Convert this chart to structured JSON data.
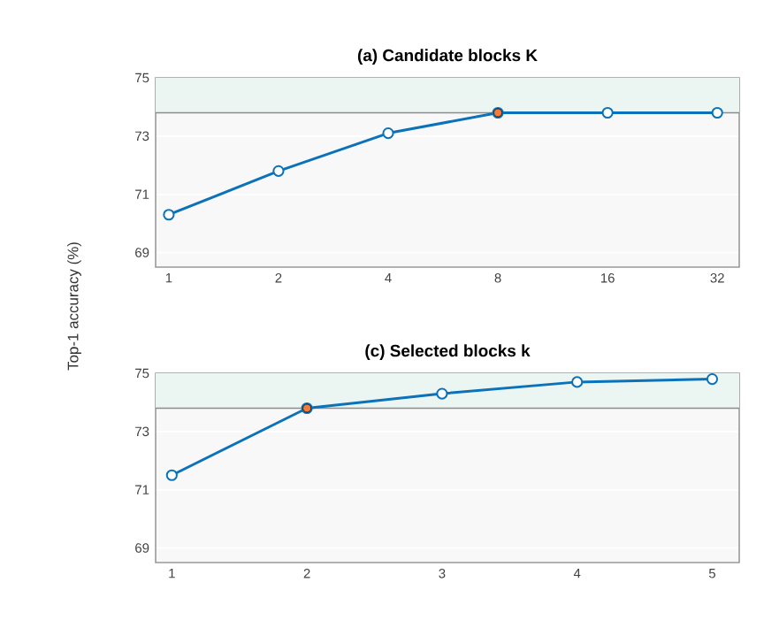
{
  "chart_data": [
    {
      "type": "line",
      "title": "(a) Candidate blocks K",
      "ylabel": "Top-1 accuracy (%)",
      "categories": [
        "1",
        "2",
        "4",
        "8",
        "16",
        "32"
      ],
      "series": [
        {
          "color": "#0b72b9",
          "values": [
            70.3,
            71.8,
            73.1,
            73.8,
            73.8,
            73.8
          ]
        },
        {
          "type": "scatter",
          "x": [
            "8"
          ],
          "values": [
            73.8
          ],
          "color": "#f07b3a"
        }
      ],
      "ylim": [
        68.5,
        75
      ],
      "yticks": [
        69,
        71,
        73,
        75
      ],
      "grid": "y",
      "marker": "circle",
      "ref_lines": [
        {
          "axis": "y",
          "value": 73.8,
          "color": "#8c8c8c"
        }
      ],
      "bands": [
        {
          "axis": "y",
          "from": 73.8,
          "to": 75,
          "color": "#ebf5f2"
        }
      ]
    },
    {
      "type": "line",
      "title": "(c) Selected blocks k",
      "categories": [
        "1",
        "2",
        "3",
        "4",
        "5"
      ],
      "series": [
        {
          "color": "#0b72b9",
          "values": [
            71.5,
            73.8,
            74.3,
            74.7,
            74.8
          ]
        },
        {
          "type": "scatter",
          "x": [
            "2"
          ],
          "values": [
            73.8
          ],
          "color": "#f07b3a"
        }
      ],
      "ylim": [
        68.5,
        75
      ],
      "yticks": [
        69,
        71,
        73,
        75
      ],
      "grid": "y",
      "marker": "circle",
      "ref_lines": [
        {
          "axis": "y",
          "value": 73.8,
          "color": "#8c8c8c"
        }
      ],
      "bands": [
        {
          "axis": "y",
          "from": 73.8,
          "to": 75,
          "color": "#ebf5f2"
        }
      ]
    }
  ]
}
